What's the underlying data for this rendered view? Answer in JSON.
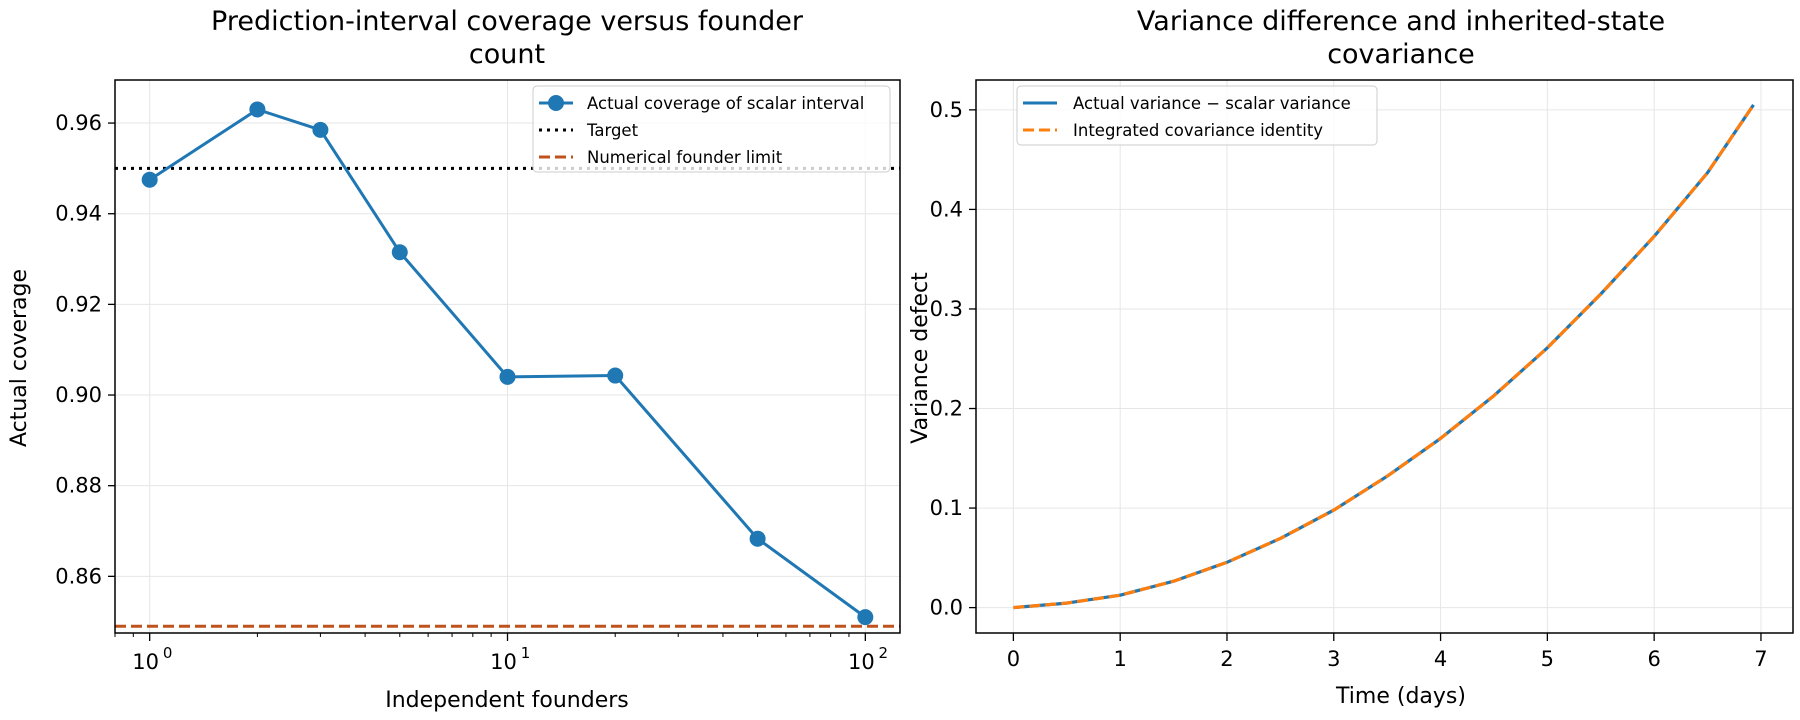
{
  "colors": {
    "actual": "#1f77b4",
    "target": "#000000",
    "founder_limit": "#c0531d",
    "integrated": "#ff7f0e",
    "grid": "#e6e6e6"
  },
  "chart_data": [
    {
      "type": "line",
      "title_lines": [
        "Prediction-interval coverage versus founder",
        "count"
      ],
      "xlabel": "Independent founders",
      "ylabel": "Actual coverage",
      "x_scale": "log",
      "xlim": [
        0.8,
        125
      ],
      "ylim": [
        0.8475,
        0.9695
      ],
      "x_ticks": [
        {
          "value": 1,
          "base": "10",
          "exp": "0"
        },
        {
          "value": 10,
          "base": "10",
          "exp": "1"
        },
        {
          "value": 100,
          "base": "10",
          "exp": "2"
        }
      ],
      "y_ticks": [
        0.86,
        0.88,
        0.9,
        0.92,
        0.94,
        0.96
      ],
      "y_tick_labels": [
        "0.86",
        "0.88",
        "0.90",
        "0.92",
        "0.94",
        "0.96"
      ],
      "grid": true,
      "legend_position": "top-right",
      "series": [
        {
          "name": "Actual coverage of scalar interval",
          "style": "line-marker",
          "x": [
            1,
            2,
            3,
            5,
            10,
            20,
            50,
            100
          ],
          "y": [
            0.9475,
            0.963,
            0.9585,
            0.9315,
            0.904,
            0.9043,
            0.8683,
            0.851
          ]
        },
        {
          "name": "Target",
          "style": "dotted-hline",
          "y": 0.95
        },
        {
          "name": "Numerical founder limit",
          "style": "dashed-hline",
          "y": 0.849
        }
      ]
    },
    {
      "type": "line",
      "title_lines": [
        "Variance difference and inherited-state",
        "covariance"
      ],
      "xlabel": "Time (days)",
      "ylabel": "Variance defect",
      "xlim": [
        -0.35,
        7.3
      ],
      "ylim": [
        -0.0255,
        0.53
      ],
      "x_ticks": [
        0,
        1,
        2,
        3,
        4,
        5,
        6,
        7
      ],
      "y_ticks": [
        0.0,
        0.1,
        0.2,
        0.3,
        0.4,
        0.5
      ],
      "y_tick_labels": [
        "0.0",
        "0.1",
        "0.2",
        "0.3",
        "0.4",
        "0.5"
      ],
      "grid": true,
      "legend_position": "top-left",
      "series": [
        {
          "name": "Actual variance − scalar variance",
          "style": "solid",
          "x": [
            0,
            0.5,
            1,
            1.5,
            2,
            2.5,
            3,
            3.5,
            4,
            4.5,
            5,
            5.5,
            6,
            6.5,
            6.93
          ],
          "y": [
            0,
            0.0045,
            0.0125,
            0.0265,
            0.0455,
            0.0695,
            0.098,
            0.132,
            0.17,
            0.213,
            0.261,
            0.315,
            0.373,
            0.437,
            0.505
          ]
        },
        {
          "name": "Integrated covariance identity",
          "style": "dashed",
          "x": [
            0,
            0.5,
            1,
            1.5,
            2,
            2.5,
            3,
            3.5,
            4,
            4.5,
            5,
            5.5,
            6,
            6.5,
            6.93
          ],
          "y": [
            0,
            0.0045,
            0.0125,
            0.0265,
            0.0455,
            0.0695,
            0.098,
            0.132,
            0.17,
            0.213,
            0.261,
            0.315,
            0.373,
            0.437,
            0.505
          ]
        }
      ]
    }
  ]
}
